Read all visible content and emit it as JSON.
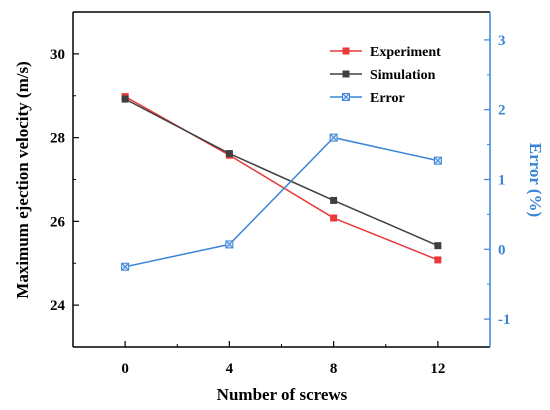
{
  "chart_data": {
    "type": "line",
    "x": [
      0,
      4,
      8,
      12
    ],
    "xlabel": "Number of screws",
    "xticks": [
      "0",
      "4",
      "8",
      "12"
    ],
    "xlim": [
      -2,
      14
    ],
    "ylabel": "Maximum ejection velocity (m/s)",
    "yticks": [
      "24",
      "26",
      "28",
      "30"
    ],
    "ylim": [
      23,
      31
    ],
    "y2label": "Error (%)",
    "y2ticks": [
      "-1",
      "0",
      "1",
      "2",
      "3"
    ],
    "y2lim": [
      -1.4,
      3.4
    ],
    "legend_position": "top-right",
    "grid": false,
    "series": [
      {
        "name": "Experiment",
        "axis": "left",
        "marker": "square",
        "color": "#e8393b",
        "values": [
          28.98,
          27.58,
          26.08,
          25.08
        ]
      },
      {
        "name": "Simulation",
        "axis": "left",
        "marker": "square",
        "color": "#404040",
        "values": [
          28.92,
          27.62,
          26.5,
          25.42
        ]
      },
      {
        "name": "Error",
        "axis": "right",
        "marker": "square-x",
        "color": "#3a85d8",
        "values": [
          -0.25,
          0.07,
          1.6,
          1.27
        ]
      }
    ]
  }
}
